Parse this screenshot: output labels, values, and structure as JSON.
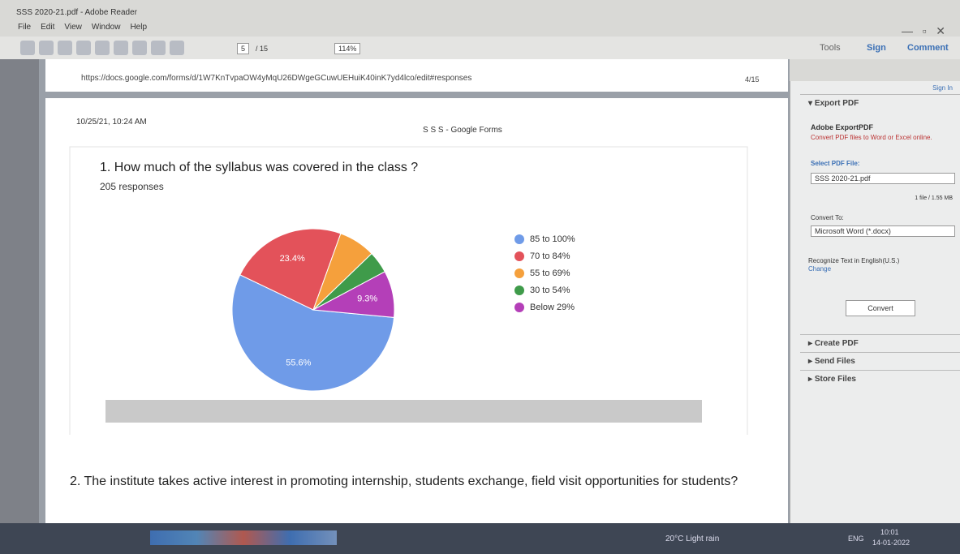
{
  "window": {
    "title": "SSS 2020-21.pdf - Adobe Reader",
    "menu": [
      "File",
      "Edit",
      "View",
      "Window",
      "Help"
    ],
    "toolbar": {
      "page": "5",
      "page_count": "/ 15",
      "zoom": "114%"
    },
    "tabs": [
      "Tools",
      "Sign",
      "Comment"
    ]
  },
  "document": {
    "url": "https://docs.google.com/forms/d/1W7KnTvpaOW4yMqU26DWgeGCuwUEHuiK40inK7yd4lco/edit#responses",
    "page_label": "4/15",
    "timestamp": "10/25/21, 10:24 AM",
    "site": "S S S - Google Forms",
    "question_2": "2. The institute takes active interest in promoting internship, students exchange, field visit opportunities for students?"
  },
  "chart_data": {
    "type": "pie",
    "title": "1. How much of the syllabus was covered in the class ?",
    "subtitle": "205 responses",
    "categories": [
      "85 to 100%",
      "70 to 84%",
      "55 to 69%",
      "30 to 54%",
      "Below 29%"
    ],
    "values": [
      55.6,
      23.4,
      7.3,
      4.4,
      9.3
    ],
    "value_labels": [
      "55.6%",
      "23.4%",
      null,
      null,
      "9.3%"
    ],
    "colors": [
      "#6f9be8",
      "#e3525a",
      "#f5a03c",
      "#3f9b4a",
      "#b43fb8"
    ]
  },
  "panel": {
    "sign_in": "Sign In",
    "export_header": "Export PDF",
    "service": "Adobe ExportPDF",
    "description": "Convert PDF files to Word or Excel online.",
    "select_label": "Select PDF File:",
    "file_name": "SSS 2020-21.pdf",
    "file_info": "1 file / 1.55 MB",
    "convert_to": "Convert To:",
    "format": "Microsoft Word (*.docx)",
    "recognize": "Recognize Text in English(U.S.)",
    "change": "Change",
    "convert_button": "Convert",
    "sections": [
      "Create PDF",
      "Send Files",
      "Store Files"
    ]
  },
  "taskbar": {
    "weather": "20°C Light rain",
    "language": "ENG",
    "time": "10:01",
    "date": "14-01-2022"
  }
}
